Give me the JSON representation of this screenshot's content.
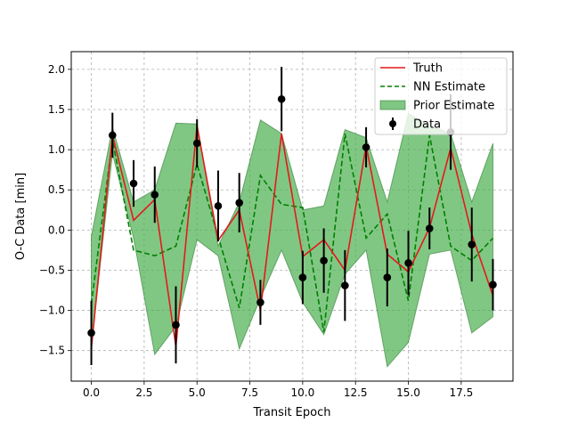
{
  "chart_data": {
    "type": "line",
    "title": "",
    "xlabel": "Transit Epoch",
    "ylabel": "O-C Data [min]",
    "xlim": [
      -0.95,
      19.95
    ],
    "ylim": [
      -1.88,
      2.22
    ],
    "xticks": [
      0.0,
      2.5,
      5.0,
      7.5,
      10.0,
      12.5,
      15.0,
      17.5
    ],
    "xtick_labels": [
      "0.0",
      "2.5",
      "5.0",
      "7.5",
      "10.0",
      "12.5",
      "15.0",
      "17.5"
    ],
    "yticks": [
      -1.5,
      -1.0,
      -0.5,
      0.0,
      0.5,
      1.0,
      1.5,
      2.0
    ],
    "ytick_labels": [
      "−1.5",
      "−1.0",
      "−0.5",
      "0.0",
      "0.5",
      "1.0",
      "1.5",
      "2.0"
    ],
    "grid": true,
    "legend_position": "top-right",
    "x": [
      0,
      1,
      2,
      3,
      4,
      5,
      6,
      7,
      8,
      9,
      10,
      11,
      12,
      13,
      14,
      15,
      16,
      17,
      18,
      19
    ],
    "series": [
      {
        "name": "Truth",
        "kind": "line",
        "color": "#e31a1c",
        "values": [
          -1.48,
          1.18,
          0.12,
          0.38,
          -1.45,
          1.3,
          -0.13,
          0.25,
          -1.0,
          1.2,
          -0.33,
          -0.12,
          -0.5,
          1.05,
          -0.3,
          -0.52,
          0.03,
          1.02,
          -0.05,
          -0.82
        ]
      },
      {
        "name": "NN Estimate",
        "kind": "dashed-line",
        "color": "#008000",
        "values": [
          -0.92,
          1.12,
          -0.25,
          -0.32,
          -0.2,
          0.82,
          -0.08,
          -0.97,
          0.68,
          0.32,
          0.28,
          -1.27,
          1.2,
          -0.1,
          0.2,
          -0.88,
          1.18,
          -0.2,
          -0.38,
          -0.1
        ]
      },
      {
        "name": "Prior Estimate",
        "kind": "band",
        "color": "#4caf50",
        "lower": [
          -1.45,
          0.95,
          -0.1,
          -1.55,
          -1.2,
          -0.12,
          -0.32,
          -1.48,
          -0.85,
          -0.25,
          -0.9,
          -1.3,
          -0.55,
          -0.25,
          -1.7,
          -1.4,
          -0.3,
          -0.25,
          -1.28,
          -1.08
        ],
        "upper": [
          -0.08,
          1.28,
          0.35,
          0.5,
          1.33,
          1.32,
          -0.2,
          0.35,
          1.37,
          1.2,
          0.25,
          0.3,
          1.25,
          1.15,
          0.35,
          1.45,
          1.3,
          1.2,
          0.35,
          1.08
        ]
      },
      {
        "name": "Data",
        "kind": "errorbar",
        "color": "#000000",
        "values": [
          -1.28,
          1.18,
          0.58,
          0.44,
          -1.18,
          1.08,
          0.3,
          0.34,
          -0.9,
          1.63,
          -0.59,
          -0.38,
          -0.69,
          1.03,
          -0.59,
          -0.41,
          0.02,
          1.22,
          -0.18,
          -0.68
        ],
        "errors": [
          0.4,
          0.28,
          0.29,
          0.35,
          0.48,
          0.3,
          0.44,
          0.37,
          0.28,
          0.4,
          0.33,
          0.4,
          0.44,
          0.25,
          0.36,
          0.4,
          0.26,
          0.47,
          0.46,
          0.32
        ]
      }
    ]
  }
}
